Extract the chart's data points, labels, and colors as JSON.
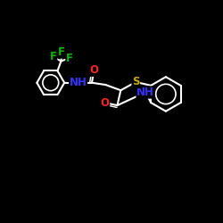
{
  "background_color": "#000000",
  "bond_color": "#ffffff",
  "atom_colors": {
    "F": "#00bb00",
    "N": "#3333ff",
    "O": "#ff2222",
    "S": "#ccaa00",
    "C": "#ffffff"
  },
  "lw": 1.5
}
